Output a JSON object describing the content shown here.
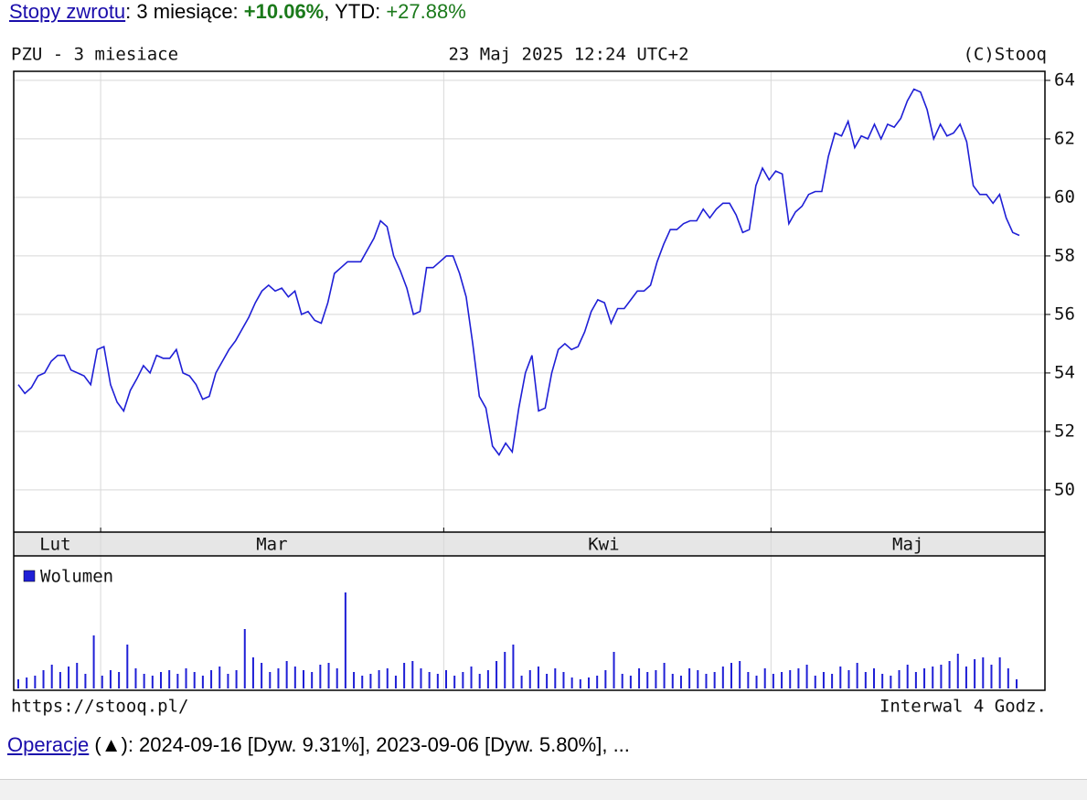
{
  "returns": [
    "Stopy zwrotu",
    ": 3 miesiące: ",
    "+10.06%",
    ", YTD: ",
    "+27.88%"
  ],
  "chart_data": [
    {
      "type": "line",
      "title": "PZU - 3 miesiace",
      "subtitle": "23 Maj 2025 12:24 UTC+2",
      "source": "(C)Stooq",
      "color": "#1f1fd6",
      "grid": true,
      "values": [
        53.6,
        53.3,
        53.5,
        53.9,
        54.0,
        54.4,
        54.6,
        54.6,
        54.1,
        54.0,
        53.9,
        53.6,
        54.8,
        54.9,
        53.6,
        53.0,
        52.7,
        53.4,
        53.8,
        54.25,
        54.0,
        54.6,
        54.5,
        54.5,
        54.8,
        54.0,
        53.9,
        53.6,
        53.1,
        53.2,
        54.0,
        54.4,
        54.8,
        55.1,
        55.5,
        55.9,
        56.4,
        56.8,
        57.0,
        56.8,
        56.9,
        56.6,
        56.8,
        56.0,
        56.1,
        55.8,
        55.7,
        56.4,
        57.4,
        57.6,
        57.8,
        57.8,
        57.8,
        58.2,
        58.6,
        59.2,
        59.0,
        58.0,
        57.5,
        56.9,
        56.0,
        56.1,
        57.6,
        57.6,
        57.8,
        58.0,
        58.0,
        57.4,
        56.6,
        55.0,
        53.2,
        52.8,
        51.5,
        51.2,
        51.6,
        51.3,
        52.8,
        54.0,
        54.6,
        52.7,
        52.8,
        54.0,
        54.8,
        55.0,
        54.8,
        54.9,
        55.4,
        56.1,
        56.5,
        56.4,
        55.7,
        56.2,
        56.2,
        56.5,
        56.8,
        56.8,
        57.0,
        57.8,
        58.4,
        58.9,
        58.9,
        59.1,
        59.2,
        59.2,
        59.6,
        59.3,
        59.6,
        59.8,
        59.8,
        59.4,
        58.8,
        58.9,
        60.4,
        61.0,
        60.6,
        60.9,
        60.8,
        59.1,
        59.5,
        59.7,
        60.1,
        60.2,
        60.2,
        61.4,
        62.2,
        62.1,
        62.6,
        61.7,
        62.1,
        62.0,
        62.5,
        62.0,
        62.5,
        62.4,
        62.7,
        63.3,
        63.7,
        63.6,
        63.0,
        62.0,
        62.5,
        62.1,
        62.2,
        62.5,
        61.9,
        60.4,
        60.1,
        60.1,
        59.8,
        60.1,
        59.3,
        58.8,
        58.7
      ],
      "xlim": [
        -0.7,
        155.9
      ],
      "xgrid": [
        12.5,
        64.6,
        114.3
      ],
      "xticks": [
        {
          "value": 5.6,
          "label": "Lut"
        },
        {
          "value": 38.5,
          "label": "Mar"
        },
        {
          "value": 88.9,
          "label": "Kwi"
        },
        {
          "value": 135.1,
          "label": "Maj"
        }
      ],
      "ylim": [
        48.56,
        64.31
      ],
      "yticks": [
        50,
        52,
        54,
        56,
        58,
        60,
        62,
        64
      ]
    },
    {
      "type": "bar",
      "ylim": [
        0,
        143
      ],
      "series": [
        {
          "name": "Wolumen",
          "color": "#1f1fd6",
          "values": [
            10,
            12,
            14,
            20,
            26,
            18,
            24,
            28,
            16,
            58,
            14,
            20,
            18,
            48,
            22,
            16,
            14,
            18,
            20,
            16,
            22,
            18,
            14,
            20,
            24,
            16,
            20,
            65,
            34,
            28,
            18,
            22,
            30,
            24,
            20,
            18,
            26,
            28,
            22,
            105,
            18,
            14,
            16,
            20,
            22,
            14,
            28,
            30,
            22,
            18,
            16,
            20,
            14,
            18,
            24,
            16,
            20,
            30,
            40,
            48,
            14,
            20,
            24,
            16,
            22,
            18,
            12,
            10,
            12,
            14,
            20,
            40,
            16,
            14,
            22,
            18,
            20,
            28,
            16,
            14,
            22,
            20,
            16,
            18,
            24,
            28,
            30,
            18,
            14,
            22,
            16,
            18,
            20,
            22,
            26,
            14,
            18,
            16,
            24,
            20,
            28,
            18,
            22,
            16,
            14,
            20,
            26,
            18,
            22,
            24,
            26,
            30,
            38,
            24,
            32,
            34,
            26,
            34,
            22,
            10
          ]
        }
      ]
    }
  ],
  "footer": {
    "url": "https://stooq.pl/",
    "interval": "Interwal 4 Godz."
  },
  "operations": [
    "Operacje",
    " (▲): 2024-09-16 [Dyw. 9.31%], 2023-09-06 [Dyw. 5.80%], ..."
  ]
}
